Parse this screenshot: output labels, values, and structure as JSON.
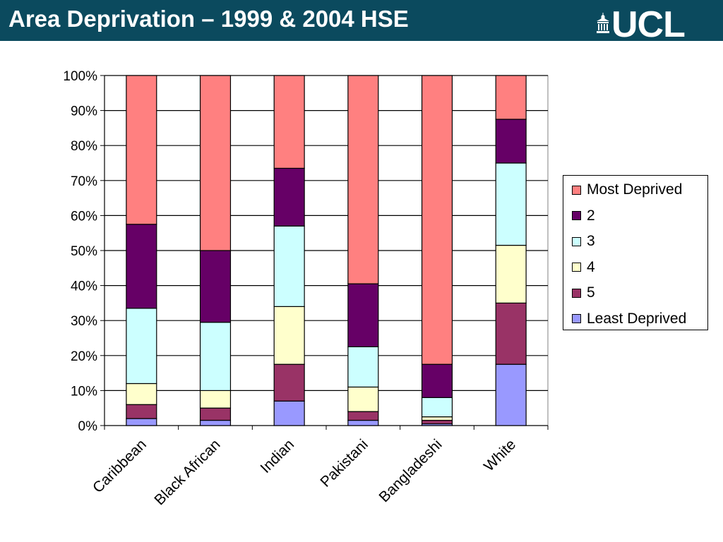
{
  "header": {
    "title": "Area Deprivation – 1999 & 2004 HSE",
    "logo_text": "UCL"
  },
  "colors": {
    "header_bg": "#0b4a5e",
    "header_text": "#ffffff"
  },
  "chart_data": {
    "type": "bar",
    "stacked": true,
    "percent": true,
    "categories": [
      "Caribbean",
      "Black African",
      "Indian",
      "Pakistani",
      "Bangladeshi",
      "White"
    ],
    "series": [
      {
        "name": "Least Deprived",
        "color": "#9999ff",
        "values": [
          2,
          1.5,
          7,
          1.5,
          0.5,
          17.5
        ]
      },
      {
        "name": "5",
        "color": "#993366",
        "values": [
          4,
          3.5,
          10.5,
          2.5,
          1,
          17.5
        ]
      },
      {
        "name": "4",
        "color": "#ffffcc",
        "values": [
          6,
          5,
          16.5,
          7,
          1,
          16.5
        ]
      },
      {
        "name": "3",
        "color": "#ccffff",
        "values": [
          21.5,
          19.5,
          23,
          11.5,
          5.5,
          23.5
        ]
      },
      {
        "name": "2",
        "color": "#660066",
        "values": [
          24,
          20.5,
          16.5,
          18,
          9.5,
          12.5
        ]
      },
      {
        "name": "Most Deprived",
        "color": "#ff8080",
        "values": [
          42.5,
          50,
          26.5,
          59.5,
          82.5,
          12.5
        ]
      }
    ],
    "ylim": [
      0,
      100
    ],
    "yticks": [
      "0%",
      "10%",
      "20%",
      "30%",
      "40%",
      "50%",
      "60%",
      "70%",
      "80%",
      "90%",
      "100%"
    ],
    "grid": true,
    "legend_position": "right",
    "legend_order": [
      "Most Deprived",
      "2",
      "3",
      "4",
      "5",
      "Least Deprived"
    ]
  }
}
